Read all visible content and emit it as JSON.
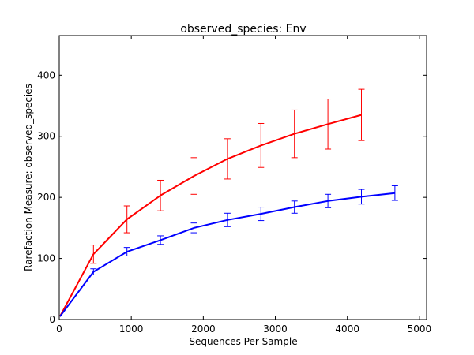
{
  "chart_data": {
    "type": "line",
    "title": "observed_species: Env",
    "xlabel": "Sequences Per Sample",
    "ylabel": "Rarefaction Measure: observed_species",
    "xlim": [
      0,
      5100
    ],
    "ylim": [
      0,
      465
    ],
    "xticks": [
      0,
      1000,
      2000,
      3000,
      4000,
      5000
    ],
    "yticks": [
      0,
      100,
      200,
      300,
      400
    ],
    "grid": false,
    "legend": "none",
    "series": [
      {
        "color": "#ff0000",
        "x": [
          10,
          475,
          940,
          1405,
          1870,
          2335,
          2800,
          3265,
          3730,
          4195
        ],
        "y": [
          5,
          107,
          164,
          203,
          235,
          263,
          285,
          304,
          320,
          335
        ],
        "err": [
          0,
          15,
          22,
          25,
          30,
          33,
          36,
          39,
          41,
          42
        ]
      },
      {
        "color": "#0000ff",
        "x": [
          10,
          475,
          940,
          1405,
          1870,
          2335,
          2800,
          3265,
          3730,
          4195,
          4660
        ],
        "y": [
          5,
          78,
          111,
          130,
          150,
          163,
          173,
          184,
          194,
          201,
          207
        ],
        "err": [
          0,
          5,
          7,
          7,
          8,
          11,
          11,
          10,
          11,
          12,
          12
        ]
      }
    ]
  }
}
